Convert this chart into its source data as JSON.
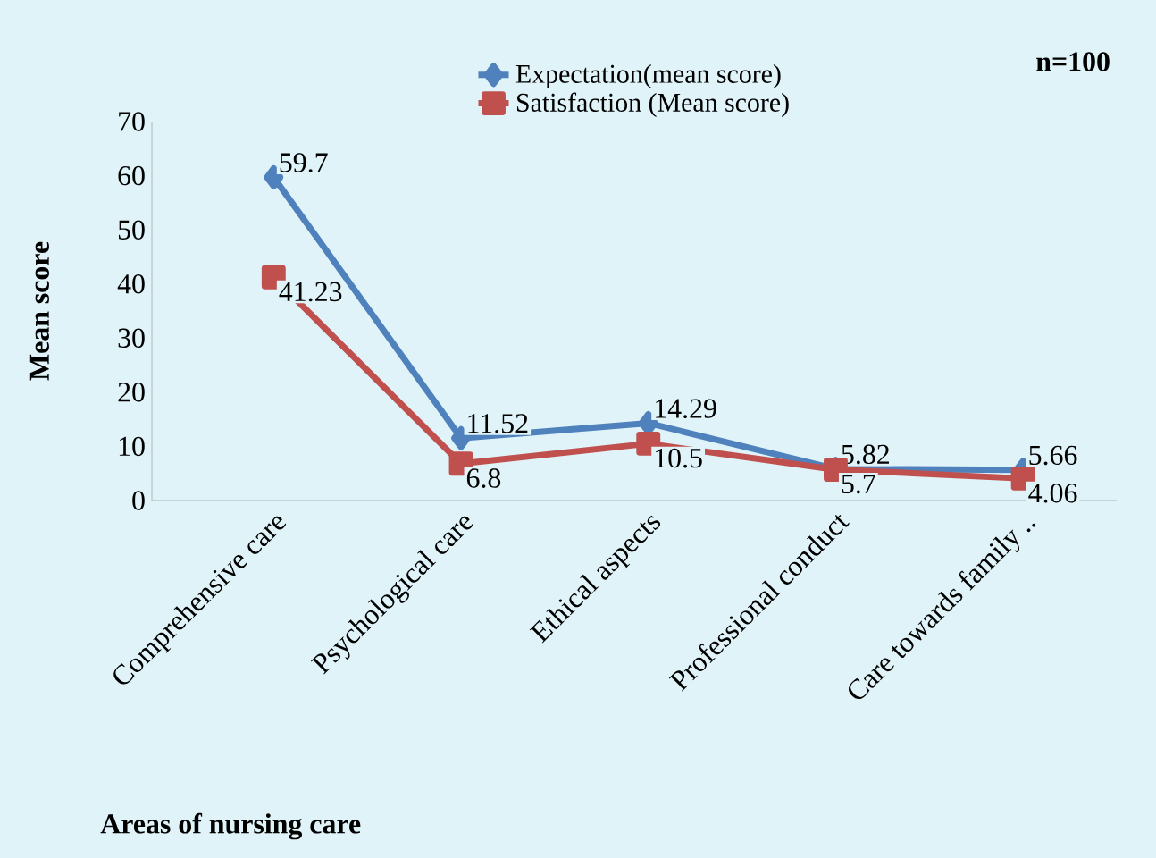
{
  "chart_data": {
    "type": "line",
    "xlabel": "Areas of nursing care",
    "ylabel": "Mean score",
    "categories": [
      "Comprehensive care",
      "Psychological care",
      "Ethical aspects",
      "Professional conduct",
      "Care towards family .."
    ],
    "series": [
      {
        "name": "Expectation(mean score)",
        "color": "#4f81bd",
        "marker": "diamond",
        "values": [
          59.7,
          11.52,
          14.29,
          5.82,
          5.66
        ]
      },
      {
        "name": "Satisfaction (Mean score)",
        "color": "#c0504d",
        "marker": "square",
        "values": [
          41.23,
          6.8,
          10.5,
          5.7,
          4.06
        ]
      }
    ],
    "ylim": [
      0,
      70
    ],
    "yticks": [
      0,
      10,
      20,
      30,
      40,
      50,
      60,
      70
    ],
    "data_labels": true,
    "legend": "top",
    "grid": false,
    "annotations": [
      "n=100"
    ]
  }
}
